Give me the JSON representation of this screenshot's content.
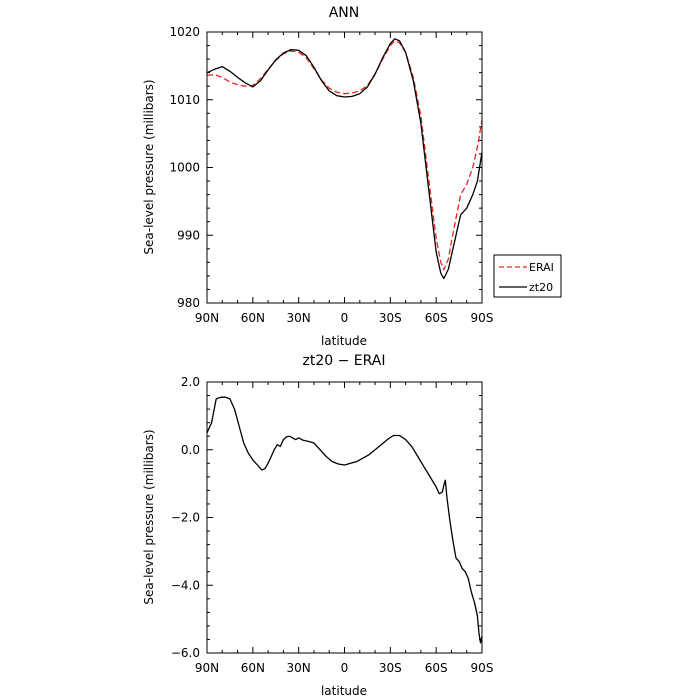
{
  "chart_data": [
    {
      "type": "line",
      "title": "ANN",
      "xlabel": "latitude",
      "ylabel": "Sea-level pressure (millibars)",
      "ylim": [
        980,
        1020
      ],
      "xlim": [
        90,
        -90
      ],
      "xticks": [
        90,
        60,
        30,
        0,
        -30,
        -60,
        -90
      ],
      "xtick_labels": [
        "90N",
        "60N",
        "30N",
        "0",
        "30S",
        "60S",
        "90S"
      ],
      "yticks": [
        980,
        990,
        1000,
        1010,
        1020
      ],
      "ytick_labels": [
        "980",
        "990",
        "1000",
        "1010",
        "1020"
      ],
      "grid": false,
      "legend": "right-outside",
      "series": [
        {
          "name": "ERAI",
          "color": "#e8261e",
          "dash": "dashed",
          "points": [
            [
              90,
              1013.6
            ],
            [
              85,
              1013.7
            ],
            [
              80,
              1013.3
            ],
            [
              75,
              1012.6
            ],
            [
              70,
              1012.2
            ],
            [
              65,
              1012.0
            ],
            [
              60,
              1012.1
            ],
            [
              55,
              1013.1
            ],
            [
              50,
              1014.5
            ],
            [
              45,
              1015.8
            ],
            [
              40,
              1016.8
            ],
            [
              35,
              1017.2
            ],
            [
              30,
              1017.0
            ],
            [
              25,
              1016.2
            ],
            [
              20,
              1014.6
            ],
            [
              15,
              1012.9
            ],
            [
              10,
              1011.7
            ],
            [
              5,
              1011.1
            ],
            [
              0,
              1010.9
            ],
            [
              -5,
              1011.0
            ],
            [
              -10,
              1011.3
            ],
            [
              -15,
              1012.1
            ],
            [
              -20,
              1013.8
            ],
            [
              -25,
              1016.0
            ],
            [
              -30,
              1018.0
            ],
            [
              -33,
              1018.7
            ],
            [
              -36,
              1018.4
            ],
            [
              -40,
              1017.0
            ],
            [
              -45,
              1013.3
            ],
            [
              -50,
              1007.6
            ],
            [
              -55,
              998.5
            ],
            [
              -60,
              989.5
            ],
            [
              -63,
              986.0
            ],
            [
              -65,
              984.9
            ],
            [
              -68,
              986.5
            ],
            [
              -70,
              989.0
            ],
            [
              -73,
              992.5
            ],
            [
              -76,
              996.0
            ],
            [
              -80,
              997.5
            ],
            [
              -84,
              1000.0
            ],
            [
              -87,
              1003.0
            ],
            [
              -90,
              1007.0
            ]
          ]
        },
        {
          "name": "zt20",
          "color": "#000000",
          "dash": "solid",
          "points": [
            [
              90,
              1014.0
            ],
            [
              85,
              1014.5
            ],
            [
              80,
              1014.9
            ],
            [
              75,
              1014.2
            ],
            [
              70,
              1013.3
            ],
            [
              65,
              1012.5
            ],
            [
              60,
              1011.9
            ],
            [
              55,
              1012.8
            ],
            [
              50,
              1014.4
            ],
            [
              45,
              1015.9
            ],
            [
              40,
              1016.9
            ],
            [
              35,
              1017.4
            ],
            [
              30,
              1017.3
            ],
            [
              25,
              1016.5
            ],
            [
              20,
              1014.8
            ],
            [
              15,
              1012.8
            ],
            [
              10,
              1011.3
            ],
            [
              5,
              1010.6
            ],
            [
              0,
              1010.4
            ],
            [
              -5,
              1010.5
            ],
            [
              -10,
              1010.9
            ],
            [
              -15,
              1011.9
            ],
            [
              -20,
              1013.8
            ],
            [
              -25,
              1016.2
            ],
            [
              -30,
              1018.3
            ],
            [
              -33,
              1019.0
            ],
            [
              -36,
              1018.7
            ],
            [
              -40,
              1017.0
            ],
            [
              -45,
              1012.8
            ],
            [
              -50,
              1006.5
            ],
            [
              -55,
              997.0
            ],
            [
              -60,
              987.5
            ],
            [
              -63,
              984.4
            ],
            [
              -65,
              983.6
            ],
            [
              -68,
              985.0
            ],
            [
              -70,
              987.0
            ],
            [
              -73,
              990.0
            ],
            [
              -76,
              993.0
            ],
            [
              -80,
              994.0
            ],
            [
              -84,
              996.0
            ],
            [
              -87,
              998.0
            ],
            [
              -90,
              1002.3
            ]
          ]
        }
      ]
    },
    {
      "type": "line",
      "title": "zt20 − ERAI",
      "xlabel": "latitude",
      "ylabel": "Sea-level pressure (millibars)",
      "ylim": [
        -6.0,
        2.0
      ],
      "xlim": [
        90,
        -90
      ],
      "xticks": [
        90,
        60,
        30,
        0,
        -30,
        -60,
        -90
      ],
      "xtick_labels": [
        "90N",
        "60N",
        "30N",
        "0",
        "30S",
        "60S",
        "90S"
      ],
      "yticks": [
        -6.0,
        -4.0,
        -2.0,
        0.0,
        2.0
      ],
      "ytick_labels": [
        "−6.0",
        "−4.0",
        "−2.0",
        "0.0",
        "2.0"
      ],
      "grid": false,
      "series": [
        {
          "color": "#000000",
          "dash": "solid",
          "points": [
            [
              90,
              0.5
            ],
            [
              87,
              0.8
            ],
            [
              84,
              1.5
            ],
            [
              81,
              1.55
            ],
            [
              78,
              1.55
            ],
            [
              75,
              1.5
            ],
            [
              72,
              1.2
            ],
            [
              69,
              0.7
            ],
            [
              66,
              0.2
            ],
            [
              63,
              -0.1
            ],
            [
              60,
              -0.3
            ],
            [
              57,
              -0.45
            ],
            [
              54,
              -0.6
            ],
            [
              52,
              -0.55
            ],
            [
              50,
              -0.4
            ],
            [
              48,
              -0.2
            ],
            [
              46,
              0.0
            ],
            [
              44,
              0.15
            ],
            [
              42,
              0.1
            ],
            [
              40,
              0.3
            ],
            [
              38,
              0.38
            ],
            [
              36,
              0.4
            ],
            [
              34,
              0.35
            ],
            [
              32,
              0.3
            ],
            [
              30,
              0.35
            ],
            [
              27,
              0.28
            ],
            [
              24,
              0.25
            ],
            [
              20,
              0.2
            ],
            [
              16,
              0.0
            ],
            [
              12,
              -0.2
            ],
            [
              8,
              -0.35
            ],
            [
              4,
              -0.42
            ],
            [
              0,
              -0.45
            ],
            [
              -4,
              -0.4
            ],
            [
              -8,
              -0.35
            ],
            [
              -12,
              -0.25
            ],
            [
              -16,
              -0.15
            ],
            [
              -20,
              0.0
            ],
            [
              -24,
              0.15
            ],
            [
              -28,
              0.3
            ],
            [
              -32,
              0.42
            ],
            [
              -36,
              0.42
            ],
            [
              -40,
              0.3
            ],
            [
              -44,
              0.1
            ],
            [
              -48,
              -0.2
            ],
            [
              -52,
              -0.5
            ],
            [
              -56,
              -0.8
            ],
            [
              -60,
              -1.1
            ],
            [
              -62,
              -1.3
            ],
            [
              -64,
              -1.25
            ],
            [
              -65,
              -1.05
            ],
            [
              -66,
              -0.9
            ],
            [
              -67,
              -1.4
            ],
            [
              -69,
              -2.1
            ],
            [
              -71,
              -2.7
            ],
            [
              -73,
              -3.2
            ],
            [
              -75,
              -3.3
            ],
            [
              -77,
              -3.5
            ],
            [
              -79,
              -3.6
            ],
            [
              -81,
              -3.8
            ],
            [
              -83,
              -4.2
            ],
            [
              -85,
              -4.5
            ],
            [
              -87,
              -4.9
            ],
            [
              -88,
              -5.4
            ],
            [
              -89,
              -5.7
            ],
            [
              -90,
              -5.5
            ]
          ]
        }
      ]
    }
  ]
}
